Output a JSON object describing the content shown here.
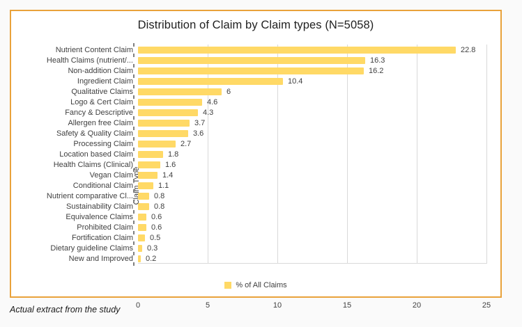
{
  "page": {
    "caption": "Actual extract from the study"
  },
  "chart_data": {
    "type": "bar",
    "orientation": "horizontal",
    "title": "Distribution of Claim by Claim types (N=5058)",
    "xlabel": "",
    "ylabel": "Claim Type",
    "legend": [
      "% of All Claims"
    ],
    "legend_position": "bottom",
    "grid": true,
    "xlim": [
      0,
      25
    ],
    "xticks": [
      0,
      5,
      10,
      15,
      20,
      25
    ],
    "bar_color": "#ffd966",
    "categories": [
      "Nutrient Content Claim",
      "Health Claims (nutrient/...",
      "Non-addition Claim",
      "Ingredient Claim",
      "Qualitative Claims",
      "Logo & Cert Claim",
      "Fancy & Descriptive",
      "Allergen free Claim",
      "Safety & Quality Claim",
      "Processing Claim",
      "Location based Claim",
      "Health Claims (Clinical)",
      "Vegan Claim",
      "Conditional Claim",
      "Nutrient comparative Cl...",
      "Sustainability Claim",
      "Equivalence Claims",
      "Prohibited Claim",
      "Fortification Claim",
      "Dietary guideline Claims",
      "New and Improved"
    ],
    "values": [
      22.8,
      16.3,
      16.2,
      10.4,
      6,
      4.6,
      4.3,
      3.7,
      3.6,
      2.7,
      1.8,
      1.6,
      1.4,
      1.1,
      0.8,
      0.8,
      0.6,
      0.6,
      0.5,
      0.3,
      0.2
    ]
  }
}
